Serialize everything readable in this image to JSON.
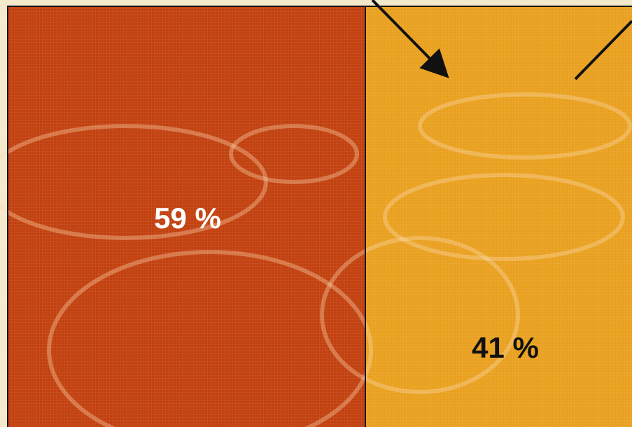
{
  "panels": [
    {
      "label": "59 %"
    },
    {
      "label": "41 %"
    }
  ]
}
